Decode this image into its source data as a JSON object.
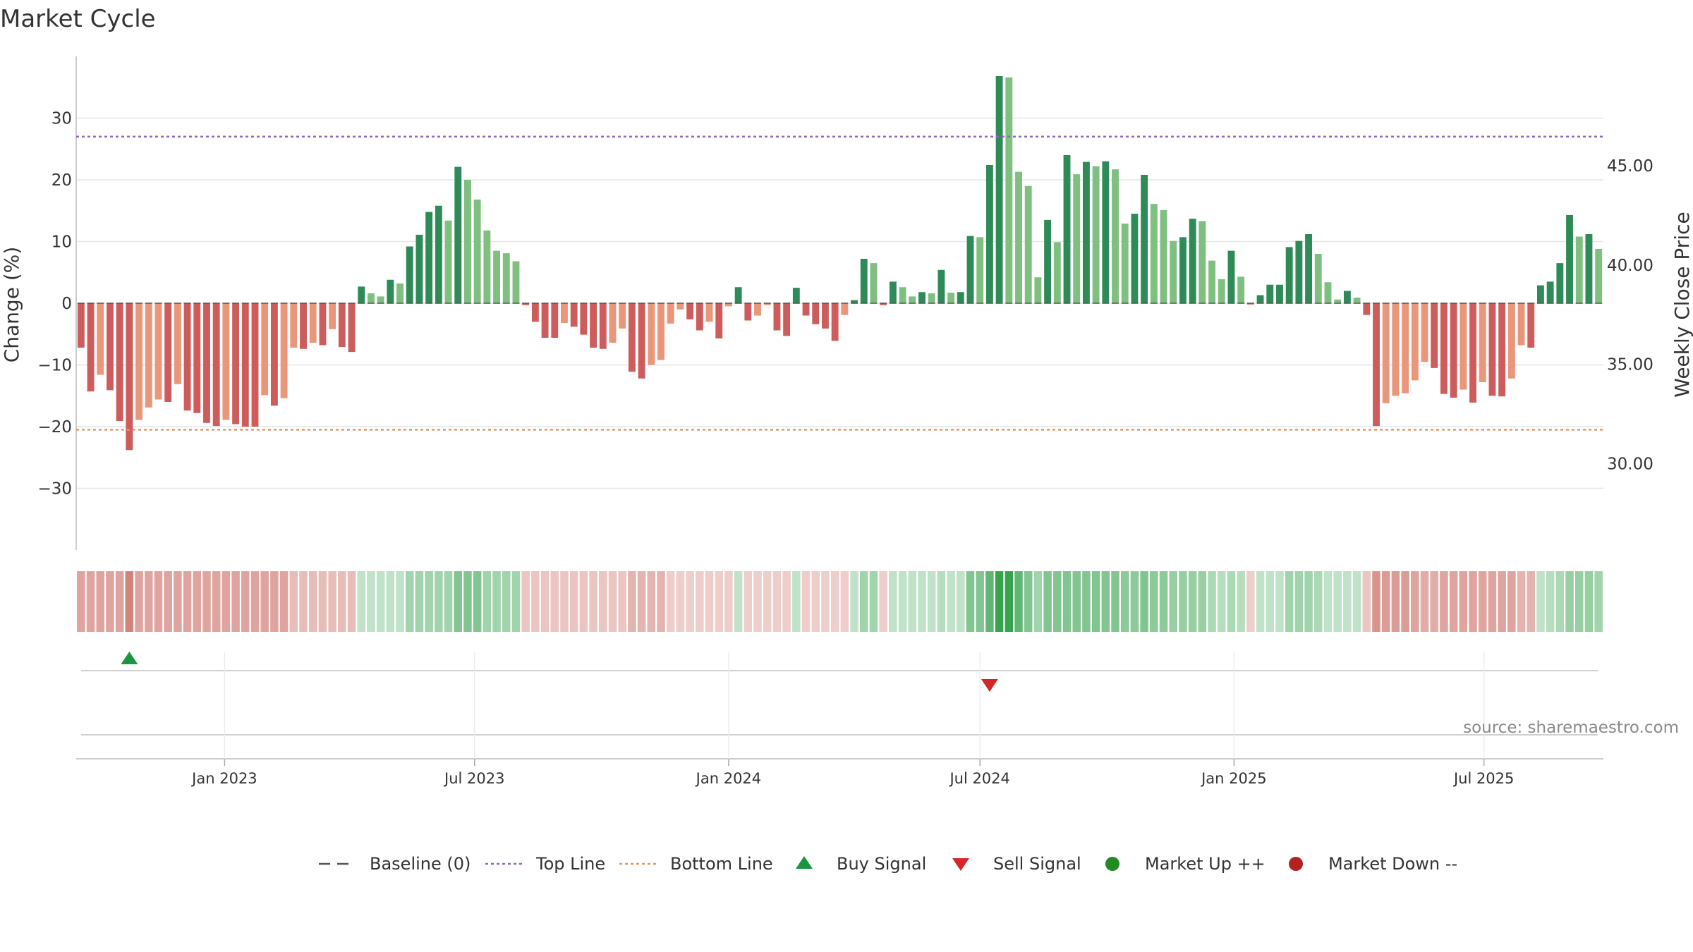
{
  "chart_data": {
    "type": "bar",
    "title": "Market Cycle",
    "ylabel": "Change (%)",
    "ylabel_right": "Weekly Close Price",
    "ylim": [
      -40,
      40
    ],
    "y_ticks": [
      30,
      20,
      10,
      0,
      -10,
      -20,
      -30
    ],
    "y_tick_labels": [
      "30",
      "20",
      "10",
      "0",
      "−10",
      "−20",
      "−30"
    ],
    "y2lim": [
      25.65,
      50.5
    ],
    "y2_ticks": [
      45,
      40,
      35,
      30
    ],
    "y2_tick_labels": [
      "45.00",
      "40.00",
      "35.00",
      "30.00"
    ],
    "top_line": 27,
    "bottom_line": -20.5,
    "x_start": "2022-09-19",
    "x_tick_labels": [
      {
        "date": "2023-01-01",
        "label": "Jan 2023"
      },
      {
        "date": "2023-07-01",
        "label": "Jul 2023"
      },
      {
        "date": "2024-01-01",
        "label": "Jan 2024"
      },
      {
        "date": "2024-07-01",
        "label": "Jul 2024"
      },
      {
        "date": "2025-01-01",
        "label": "Jan 2025"
      },
      {
        "date": "2025-07-01",
        "label": "Jul 2025"
      }
    ],
    "values": [
      -7.2,
      -14.3,
      -11.6,
      -14.1,
      -19.1,
      -23.8,
      -18.9,
      -16.9,
      -15.6,
      -16.0,
      -13.1,
      -17.4,
      -17.8,
      -19.4,
      -19.9,
      -18.9,
      -19.6,
      -20.0,
      -20.0,
      -14.9,
      -16.6,
      -15.4,
      -7.2,
      -7.4,
      -6.4,
      -6.8,
      -4.2,
      -7.1,
      -7.9,
      2.7,
      1.6,
      1.1,
      3.8,
      3.2,
      9.2,
      11.1,
      14.8,
      15.8,
      13.4,
      22.1,
      20.0,
      16.8,
      11.8,
      8.5,
      8.1,
      6.8,
      -0.3,
      -3.0,
      -5.6,
      -5.6,
      -3.2,
      -3.8,
      -5.1,
      -7.2,
      -7.4,
      -6.4,
      -4.1,
      -11.1,
      -12.2,
      -10.0,
      -9.2,
      -3.3,
      -1.0,
      -2.6,
      -4.4,
      -3.0,
      -5.7,
      -0.5,
      2.6,
      -2.8,
      -2.0,
      -0.3,
      -4.4,
      -5.3,
      2.5,
      -2.0,
      -3.4,
      -4.1,
      -6.1,
      -1.9,
      0.5,
      7.2,
      6.5,
      -0.3,
      3.5,
      2.6,
      1.1,
      1.8,
      1.6,
      5.4,
      1.7,
      1.8,
      10.9,
      10.7,
      22.4,
      36.8,
      36.6,
      21.3,
      19.0,
      4.2,
      13.5,
      9.9,
      24.0,
      20.9,
      22.9,
      22.2,
      23.0,
      21.7,
      12.9,
      14.5,
      20.8,
      16.1,
      15.1,
      10.1,
      10.7,
      13.7,
      13.3,
      6.9,
      3.9,
      8.5,
      4.3,
      -0.2,
      1.3,
      3.0,
      3.0,
      9.1,
      10.1,
      11.2,
      8.0,
      3.4,
      0.6,
      2.0,
      0.9,
      -1.9,
      -19.9,
      -16.2,
      -15.0,
      -14.6,
      -12.5,
      -9.5,
      -10.5,
      -14.7,
      -15.3,
      -14.0,
      -16.1,
      -12.8,
      -15.0,
      -15.1,
      -12.2,
      -6.8,
      -7.2,
      2.9,
      3.5,
      6.5,
      14.3,
      10.8,
      11.2,
      8.8
    ],
    "price": {
      "ylim": [
        25.65,
        50.5
      ]
    },
    "strip_intensity": [
      0.55,
      0.55,
      0.55,
      0.55,
      0.55,
      0.75,
      0.55,
      0.55,
      0.55,
      0.55,
      0.55,
      0.55,
      0.55,
      0.55,
      0.55,
      0.55,
      0.55,
      0.55,
      0.55,
      0.55,
      0.55,
      0.55,
      0.4,
      0.4,
      0.4,
      0.4,
      0.4,
      0.4,
      0.4,
      0.3,
      0.3,
      0.3,
      0.3,
      0.3,
      0.45,
      0.45,
      0.45,
      0.45,
      0.45,
      0.6,
      0.6,
      0.6,
      0.45,
      0.45,
      0.45,
      0.45,
      0.35,
      0.35,
      0.35,
      0.35,
      0.35,
      0.35,
      0.35,
      0.35,
      0.35,
      0.35,
      0.35,
      0.45,
      0.45,
      0.45,
      0.45,
      0.3,
      0.3,
      0.3,
      0.3,
      0.3,
      0.3,
      0.3,
      0.3,
      0.3,
      0.3,
      0.3,
      0.3,
      0.3,
      0.3,
      0.3,
      0.3,
      0.3,
      0.3,
      0.3,
      0.3,
      0.45,
      0.45,
      0.3,
      0.3,
      0.3,
      0.3,
      0.3,
      0.3,
      0.35,
      0.3,
      0.3,
      0.6,
      0.6,
      0.75,
      0.95,
      0.95,
      0.75,
      0.6,
      0.45,
      0.6,
      0.6,
      0.6,
      0.6,
      0.6,
      0.6,
      0.6,
      0.6,
      0.55,
      0.55,
      0.6,
      0.55,
      0.55,
      0.5,
      0.5,
      0.5,
      0.5,
      0.4,
      0.35,
      0.4,
      0.35,
      0.3,
      0.3,
      0.3,
      0.3,
      0.45,
      0.45,
      0.45,
      0.4,
      0.3,
      0.3,
      0.3,
      0.3,
      0.35,
      0.65,
      0.6,
      0.6,
      0.6,
      0.55,
      0.5,
      0.5,
      0.55,
      0.55,
      0.55,
      0.55,
      0.55,
      0.55,
      0.55,
      0.55,
      0.45,
      0.45,
      0.3,
      0.35,
      0.4,
      0.5,
      0.5,
      0.5,
      0.45
    ],
    "buy_signals": [
      5
    ],
    "sell_signals": [
      94
    ],
    "market_up_signals": [],
    "market_down_signals": [],
    "colors": {
      "up_strong": "#2e8b57",
      "up_weak": "#7fbf7f",
      "down_strong": "#cd5c5c",
      "down_weak": "#e9967a",
      "top_line": "#9467bd",
      "bottom_line": "#e59866",
      "baseline": "#555555",
      "buy": "#1a9641",
      "sell": "#d62728",
      "market_up": "#228b22",
      "market_down": "#b22222",
      "grid": "#e6e6e6"
    },
    "legend": [
      {
        "name": "Baseline (0)",
        "symbol": "dash"
      },
      {
        "name": "Top Line",
        "symbol": "dot-purple"
      },
      {
        "name": "Bottom Line",
        "symbol": "dot-orange"
      },
      {
        "name": "Buy Signal",
        "symbol": "triangle-up"
      },
      {
        "name": "Sell Signal",
        "symbol": "triangle-down"
      },
      {
        "name": "Market Up ++",
        "symbol": "circle-green"
      },
      {
        "name": "Market Down --",
        "symbol": "circle-red"
      }
    ],
    "legend_position": "bottom-center",
    "source_text": "source: sharemaestro.com"
  }
}
